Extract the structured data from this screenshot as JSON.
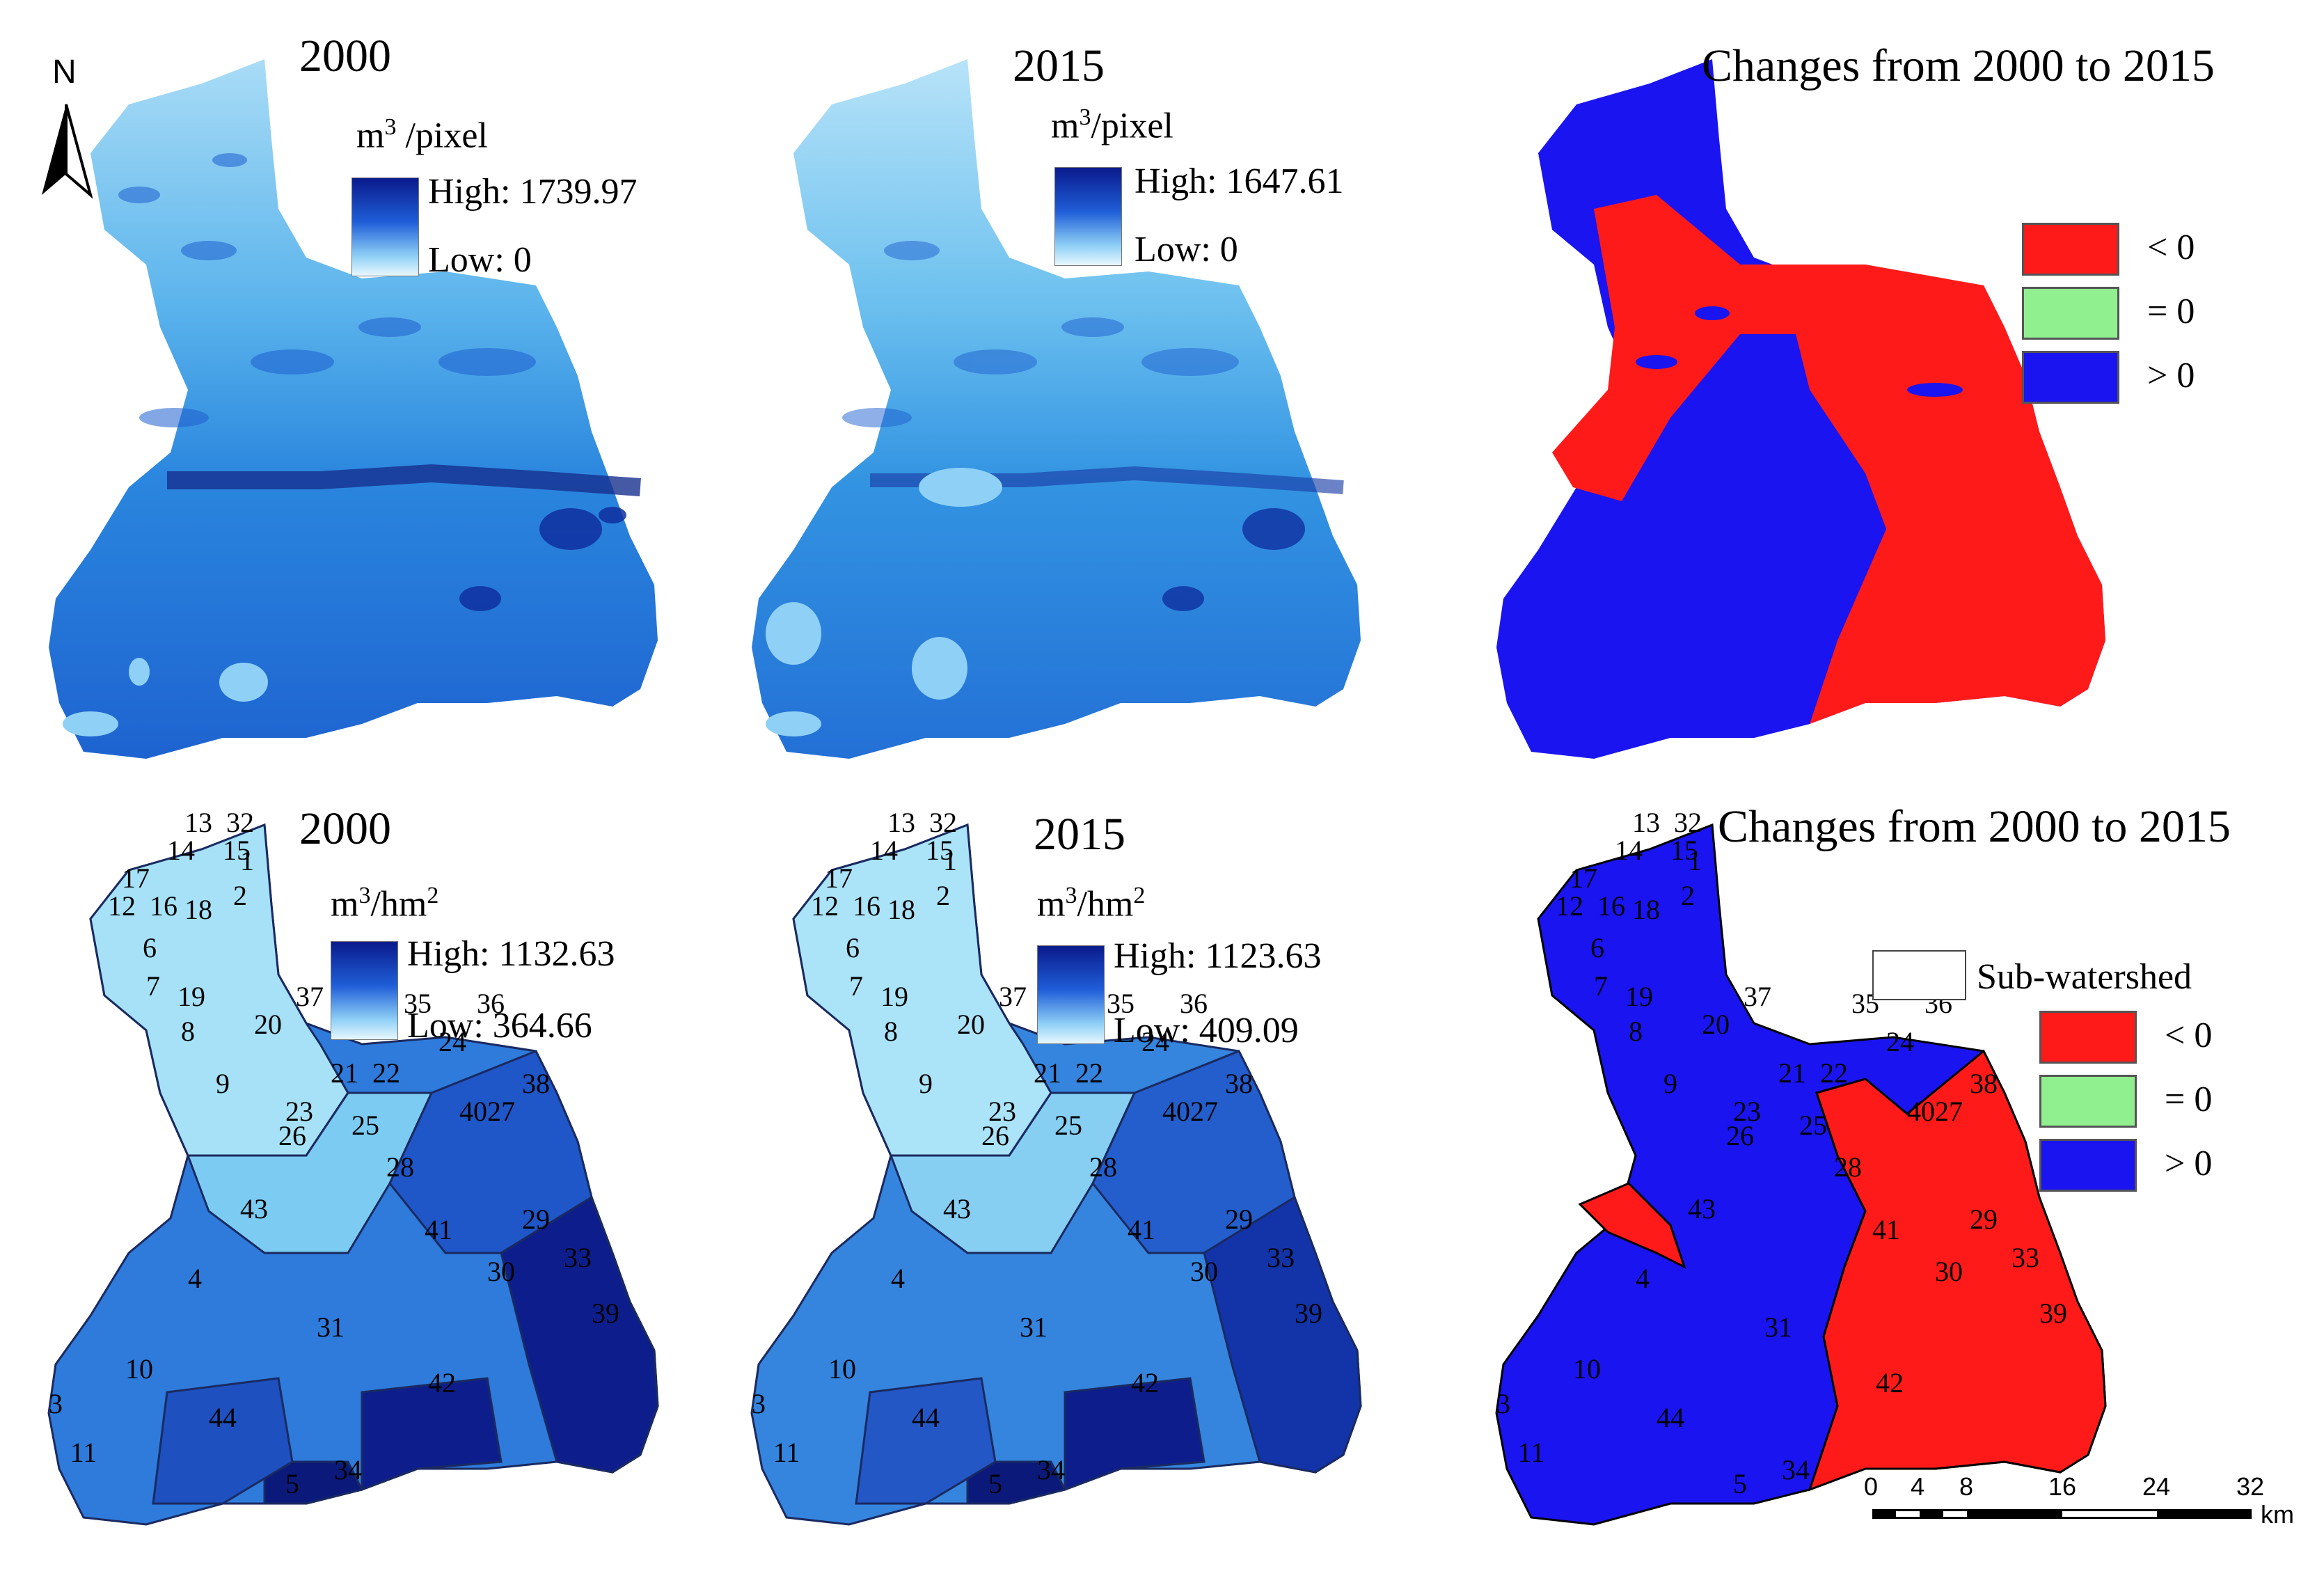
{
  "colors": {
    "negative": "#ff1a1a",
    "zero": "#90f090",
    "positive": "#1a14f0",
    "ramp_high": "#0a1a8c",
    "ramp_low": "#e8f7fe"
  },
  "north_arrow": {
    "label": "N",
    "icon": "north-arrow-icon"
  },
  "top_row": {
    "panel_2000": {
      "title": "2000",
      "unit_base": "m",
      "unit_sup": "3",
      "unit_rest": " /pixel",
      "high": "High: 1739.97",
      "low": "Low: 0"
    },
    "panel_2015": {
      "title": "2015",
      "unit_base": "m",
      "unit_sup": "3",
      "unit_rest": "/pixel",
      "high": "High: 1647.61",
      "low": "Low: 0"
    },
    "panel_change": {
      "title": "Changes from 2000 to 2015",
      "legend": [
        "< 0",
        "= 0",
        "> 0"
      ]
    }
  },
  "bottom_row": {
    "panel_2000": {
      "title": "2000",
      "unit_base": "m",
      "unit_sup": "3",
      "unit_rest": "/hm",
      "unit_sup2": "2",
      "high": "High: 1132.63",
      "low": "Low: 364.66"
    },
    "panel_2015": {
      "title": "2015",
      "unit_base": "m",
      "unit_sup": "3",
      "unit_rest": "/hm",
      "unit_sup2": "2",
      "high": "High: 1123.63",
      "low": "Low: 409.09"
    },
    "panel_change": {
      "title": "Changes from 2000 to 2015",
      "outline_label": "Sub-watershed",
      "legend": [
        "< 0",
        "= 0",
        "> 0"
      ]
    }
  },
  "subwatershed_ids": [
    "1",
    "2",
    "3",
    "4",
    "5",
    "6",
    "7",
    "8",
    "9",
    "10",
    "11",
    "12",
    "13",
    "14",
    "15",
    "16",
    "17",
    "18",
    "19",
    "20",
    "21",
    "22",
    "23",
    "24",
    "25",
    "26",
    "27",
    "28",
    "29",
    "30",
    "31",
    "32",
    "33",
    "34",
    "35",
    "36",
    "37",
    "38",
    "39",
    "40",
    "41",
    "42",
    "43",
    "44"
  ],
  "scale_bar": {
    "ticks": [
      "0",
      "4",
      "8",
      "16",
      "24",
      "32"
    ],
    "unit": "km"
  }
}
